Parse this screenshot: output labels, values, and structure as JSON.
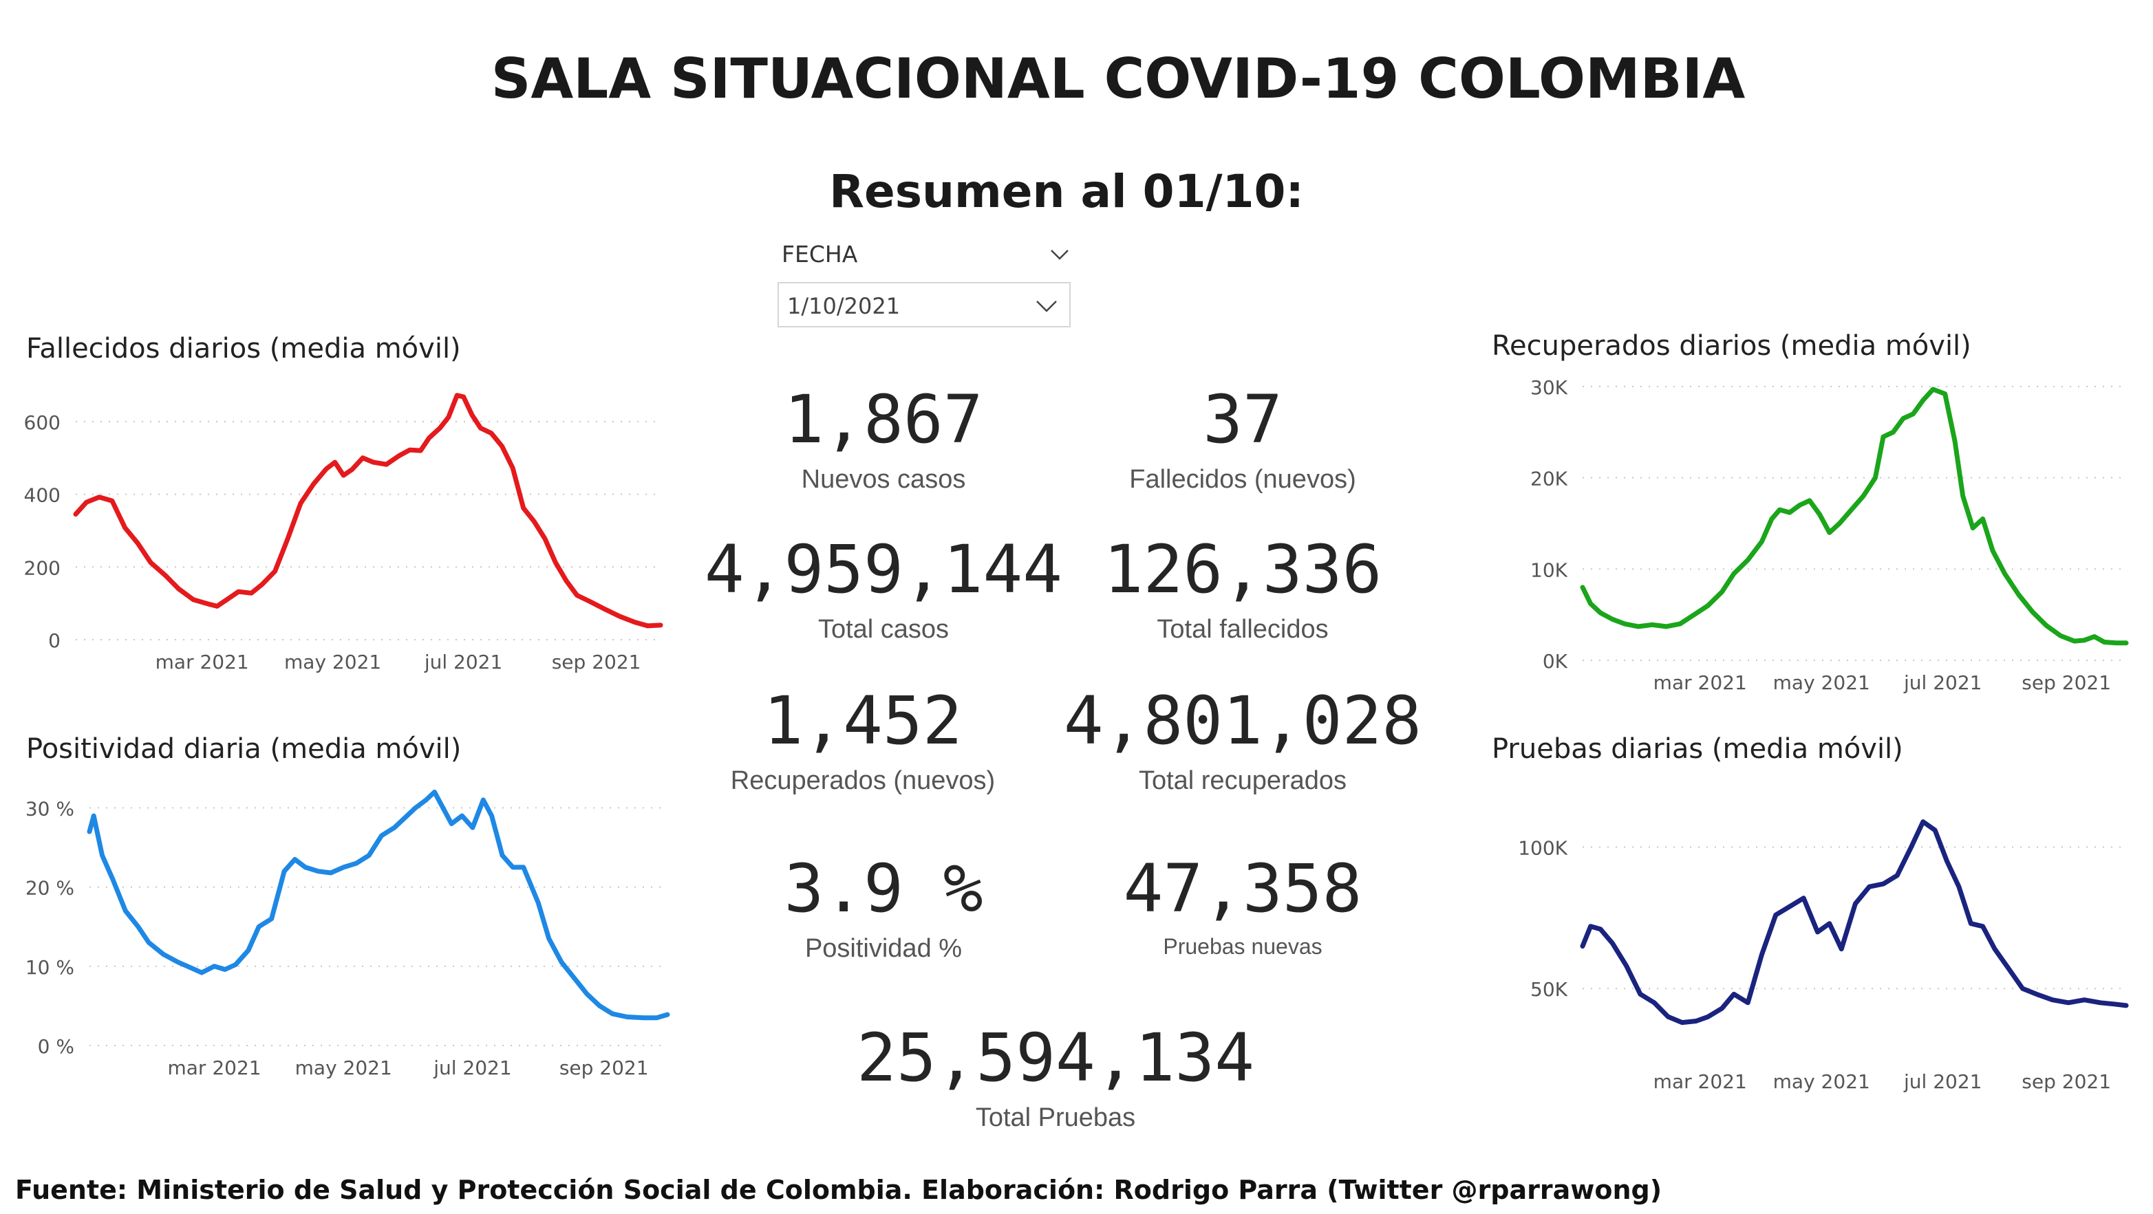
{
  "header": {
    "title": "SALA SITUACIONAL COVID-19 COLOMBIA",
    "subtitle": "Resumen al 01/10:"
  },
  "slicer": {
    "label": "FECHA",
    "value": "1/10/2021"
  },
  "kpis": {
    "nuevos_casos": {
      "value": "1,867",
      "label": "Nuevos casos"
    },
    "fallecidos_nuevos": {
      "value": "37",
      "label": "Fallecidos (nuevos)"
    },
    "total_casos": {
      "value": "4,959,144",
      "label": "Total casos"
    },
    "total_fallecidos": {
      "value": "126,336",
      "label": "Total fallecidos"
    },
    "recuperados_nuevos": {
      "value": "1,452",
      "label": "Recuperados (nuevos)"
    },
    "total_recuperados": {
      "value": "4,801,028",
      "label": "Total recuperados"
    },
    "positividad": {
      "value": "3.9 %",
      "label": "Positividad %"
    },
    "pruebas_nuevas": {
      "value": "47,358",
      "label": "Pruebas nuevas"
    },
    "total_pruebas": {
      "value": "25,594,134",
      "label": "Total Pruebas"
    }
  },
  "footer": "Fuente: Ministerio de Salud y Protección Social de Colombia. Elaboración: Rodrigo Parra (Twitter @rparrawong)",
  "icons": {
    "slicer_header": "chevron-down-icon",
    "slicer_box": "chevron-down-icon"
  },
  "chart_data": [
    {
      "id": "fallecidos",
      "type": "line",
      "title": "Fallecidos diarios (media móvil)",
      "color": "#e41a1c",
      "ylim": [
        0,
        700
      ],
      "yticks": [
        0,
        200,
        400,
        600
      ],
      "ytick_labels": [
        "0",
        "200",
        "400",
        "600"
      ],
      "xlim": [
        "2021-01-01",
        "2021-10-01"
      ],
      "xticks": [
        "2021-03-01",
        "2021-05-01",
        "2021-07-01",
        "2021-09-01"
      ],
      "xtick_labels": [
        "mar 2021",
        "may 2021",
        "jul 2021",
        "sep 2021"
      ],
      "grid": true,
      "series": [
        {
          "points": [
            [
              "2021-01-01",
              345
            ],
            [
              "2021-01-06",
              378
            ],
            [
              "2021-01-12",
              392
            ],
            [
              "2021-01-18",
              382
            ],
            [
              "2021-01-24",
              308
            ],
            [
              "2021-01-30",
              265
            ],
            [
              "2021-02-05",
              212
            ],
            [
              "2021-02-12",
              176
            ],
            [
              "2021-02-18",
              140
            ],
            [
              "2021-02-25",
              110
            ],
            [
              "2021-03-04",
              98
            ],
            [
              "2021-03-08",
              92
            ],
            [
              "2021-03-13",
              112
            ],
            [
              "2021-03-18",
              132
            ],
            [
              "2021-03-24",
              128
            ],
            [
              "2021-03-29",
              152
            ],
            [
              "2021-04-04",
              188
            ],
            [
              "2021-04-10",
              278
            ],
            [
              "2021-04-16",
              375
            ],
            [
              "2021-04-22",
              428
            ],
            [
              "2021-04-28",
              470
            ],
            [
              "2021-05-02",
              488
            ],
            [
              "2021-05-06",
              452
            ],
            [
              "2021-05-10",
              468
            ],
            [
              "2021-05-15",
              500
            ],
            [
              "2021-05-20",
              488
            ],
            [
              "2021-05-26",
              482
            ],
            [
              "2021-06-01",
              506
            ],
            [
              "2021-06-06",
              522
            ],
            [
              "2021-06-11",
              520
            ],
            [
              "2021-06-15",
              555
            ],
            [
              "2021-06-20",
              582
            ],
            [
              "2021-06-24",
              612
            ],
            [
              "2021-06-28",
              672
            ],
            [
              "2021-07-01",
              668
            ],
            [
              "2021-07-05",
              618
            ],
            [
              "2021-07-09",
              582
            ],
            [
              "2021-07-14",
              568
            ],
            [
              "2021-07-19",
              532
            ],
            [
              "2021-07-24",
              472
            ],
            [
              "2021-07-29",
              362
            ],
            [
              "2021-08-03",
              325
            ],
            [
              "2021-08-08",
              278
            ],
            [
              "2021-08-13",
              212
            ],
            [
              "2021-08-18",
              162
            ],
            [
              "2021-08-23",
              122
            ],
            [
              "2021-08-29",
              105
            ],
            [
              "2021-09-05",
              84
            ],
            [
              "2021-09-12",
              64
            ],
            [
              "2021-09-19",
              48
            ],
            [
              "2021-09-25",
              38
            ],
            [
              "2021-10-01",
              40
            ]
          ]
        }
      ]
    },
    {
      "id": "positividad",
      "type": "line",
      "title": "Positividad diaria (media móvil)",
      "color": "#1e88e5",
      "ylim": [
        0,
        33
      ],
      "yticks": [
        0,
        10,
        20,
        30
      ],
      "ytick_labels": [
        "0 %",
        "10 %",
        "20 %",
        "30 %"
      ],
      "xlim": [
        "2021-01-01",
        "2021-10-01"
      ],
      "xticks": [
        "2021-03-01",
        "2021-05-01",
        "2021-07-01",
        "2021-09-01"
      ],
      "xtick_labels": [
        "mar 2021",
        "may 2021",
        "jul 2021",
        "sep 2021"
      ],
      "grid": true,
      "series": [
        {
          "points": [
            [
              "2021-01-01",
              27
            ],
            [
              "2021-01-03",
              29
            ],
            [
              "2021-01-07",
              24
            ],
            [
              "2021-01-12",
              21
            ],
            [
              "2021-01-18",
              17
            ],
            [
              "2021-01-24",
              15
            ],
            [
              "2021-01-29",
              13
            ],
            [
              "2021-02-05",
              11.5
            ],
            [
              "2021-02-12",
              10.5
            ],
            [
              "2021-02-18",
              9.8
            ],
            [
              "2021-02-23",
              9.2
            ],
            [
              "2021-03-01",
              10
            ],
            [
              "2021-03-06",
              9.6
            ],
            [
              "2021-03-11",
              10.2
            ],
            [
              "2021-03-17",
              12
            ],
            [
              "2021-03-22",
              15
            ],
            [
              "2021-03-28",
              16
            ],
            [
              "2021-04-03",
              22
            ],
            [
              "2021-04-08",
              23.5
            ],
            [
              "2021-04-13",
              22.5
            ],
            [
              "2021-04-19",
              22
            ],
            [
              "2021-04-25",
              21.8
            ],
            [
              "2021-05-01",
              22.5
            ],
            [
              "2021-05-07",
              23
            ],
            [
              "2021-05-13",
              24
            ],
            [
              "2021-05-19",
              26.5
            ],
            [
              "2021-05-25",
              27.5
            ],
            [
              "2021-05-31",
              29
            ],
            [
              "2021-06-04",
              30
            ],
            [
              "2021-06-09",
              31
            ],
            [
              "2021-06-13",
              32
            ],
            [
              "2021-06-17",
              30
            ],
            [
              "2021-06-21",
              28
            ],
            [
              "2021-06-26",
              29
            ],
            [
              "2021-07-01",
              27.5
            ],
            [
              "2021-07-06",
              31
            ],
            [
              "2021-07-10",
              29
            ],
            [
              "2021-07-15",
              24
            ],
            [
              "2021-07-20",
              22.5
            ],
            [
              "2021-07-25",
              22.5
            ],
            [
              "2021-08-01",
              18
            ],
            [
              "2021-08-06",
              13.5
            ],
            [
              "2021-08-12",
              10.5
            ],
            [
              "2021-08-18",
              8.5
            ],
            [
              "2021-08-24",
              6.5
            ],
            [
              "2021-08-30",
              5
            ],
            [
              "2021-09-05",
              4
            ],
            [
              "2021-09-12",
              3.6
            ],
            [
              "2021-09-20",
              3.5
            ],
            [
              "2021-09-26",
              3.5
            ],
            [
              "2021-10-01",
              3.9
            ]
          ]
        }
      ]
    },
    {
      "id": "recuperados",
      "type": "line",
      "title": "Recuperados diarios (media móvil)",
      "color": "#1aa51a",
      "ylim": [
        0,
        30000
      ],
      "yticks": [
        0,
        10000,
        20000,
        30000
      ],
      "ytick_labels": [
        "0K",
        "10K",
        "20K",
        "30K"
      ],
      "xlim": [
        "2021-01-01",
        "2021-10-01"
      ],
      "xticks": [
        "2021-03-01",
        "2021-05-01",
        "2021-07-01",
        "2021-09-01"
      ],
      "xtick_labels": [
        "mar 2021",
        "may 2021",
        "jul 2021",
        "sep 2021"
      ],
      "grid": true,
      "series": [
        {
          "points": [
            [
              "2021-01-01",
              8000
            ],
            [
              "2021-01-05",
              6200
            ],
            [
              "2021-01-10",
              5200
            ],
            [
              "2021-01-16",
              4500
            ],
            [
              "2021-01-22",
              4000
            ],
            [
              "2021-01-29",
              3700
            ],
            [
              "2021-02-05",
              3900
            ],
            [
              "2021-02-12",
              3700
            ],
            [
              "2021-02-19",
              4000
            ],
            [
              "2021-02-26",
              5000
            ],
            [
              "2021-03-05",
              6000
            ],
            [
              "2021-03-12",
              7500
            ],
            [
              "2021-03-18",
              9500
            ],
            [
              "2021-03-25",
              11000
            ],
            [
              "2021-04-01",
              13000
            ],
            [
              "2021-04-06",
              15500
            ],
            [
              "2021-04-10",
              16500
            ],
            [
              "2021-04-15",
              16200
            ],
            [
              "2021-04-20",
              17000
            ],
            [
              "2021-04-25",
              17500
            ],
            [
              "2021-04-30",
              16000
            ],
            [
              "2021-05-05",
              14000
            ],
            [
              "2021-05-10",
              15000
            ],
            [
              "2021-05-16",
              16500
            ],
            [
              "2021-05-22",
              18000
            ],
            [
              "2021-05-28",
              20000
            ],
            [
              "2021-06-01",
              24500
            ],
            [
              "2021-06-06",
              25000
            ],
            [
              "2021-06-11",
              26500
            ],
            [
              "2021-06-16",
              27000
            ],
            [
              "2021-06-21",
              28500
            ],
            [
              "2021-06-26",
              29700
            ],
            [
              "2021-07-02",
              29200
            ],
            [
              "2021-07-07",
              24000
            ],
            [
              "2021-07-11",
              18000
            ],
            [
              "2021-07-16",
              14500
            ],
            [
              "2021-07-21",
              15500
            ],
            [
              "2021-07-26",
              12000
            ],
            [
              "2021-08-01",
              9500
            ],
            [
              "2021-08-08",
              7200
            ],
            [
              "2021-08-15",
              5300
            ],
            [
              "2021-08-22",
              3800
            ],
            [
              "2021-08-29",
              2700
            ],
            [
              "2021-09-05",
              2100
            ],
            [
              "2021-09-10",
              2200
            ],
            [
              "2021-09-15",
              2600
            ],
            [
              "2021-09-20",
              2000
            ],
            [
              "2021-09-26",
              1900
            ],
            [
              "2021-10-01",
              1900
            ]
          ]
        }
      ]
    },
    {
      "id": "pruebas",
      "type": "line",
      "title": "Pruebas diarias (media móvil)",
      "color": "#1a237e",
      "ylim": [
        25000,
        115000
      ],
      "yticks": [
        50000,
        100000
      ],
      "ytick_labels": [
        "50K",
        "100K"
      ],
      "xlim": [
        "2021-01-01",
        "2021-10-01"
      ],
      "xticks": [
        "2021-03-01",
        "2021-05-01",
        "2021-07-01",
        "2021-09-01"
      ],
      "xtick_labels": [
        "mar 2021",
        "may 2021",
        "jul 2021",
        "sep 2021"
      ],
      "grid": true,
      "series": [
        {
          "points": [
            [
              "2021-01-01",
              65000
            ],
            [
              "2021-01-05",
              72000
            ],
            [
              "2021-01-10",
              71000
            ],
            [
              "2021-01-16",
              66000
            ],
            [
              "2021-01-23",
              58000
            ],
            [
              "2021-01-30",
              48000
            ],
            [
              "2021-02-06",
              45000
            ],
            [
              "2021-02-13",
              40000
            ],
            [
              "2021-02-20",
              38000
            ],
            [
              "2021-02-27",
              38500
            ],
            [
              "2021-03-05",
              40000
            ],
            [
              "2021-03-12",
              43000
            ],
            [
              "2021-03-18",
              48000
            ],
            [
              "2021-03-25",
              45000
            ],
            [
              "2021-04-01",
              62000
            ],
            [
              "2021-04-08",
              76000
            ],
            [
              "2021-04-15",
              79000
            ],
            [
              "2021-04-22",
              82000
            ],
            [
              "2021-04-29",
              70000
            ],
            [
              "2021-05-05",
              73000
            ],
            [
              "2021-05-11",
              64000
            ],
            [
              "2021-05-18",
              80000
            ],
            [
              "2021-05-25",
              86000
            ],
            [
              "2021-06-01",
              87000
            ],
            [
              "2021-06-08",
              90000
            ],
            [
              "2021-06-15",
              100000
            ],
            [
              "2021-06-21",
              109000
            ],
            [
              "2021-06-27",
              106000
            ],
            [
              "2021-07-03",
              95000
            ],
            [
              "2021-07-09",
              86000
            ],
            [
              "2021-07-15",
              73000
            ],
            [
              "2021-07-21",
              72000
            ],
            [
              "2021-07-27",
              64000
            ],
            [
              "2021-08-03",
              57000
            ],
            [
              "2021-08-10",
              50000
            ],
            [
              "2021-08-17",
              48000
            ],
            [
              "2021-08-25",
              46000
            ],
            [
              "2021-09-02",
              45000
            ],
            [
              "2021-09-10",
              46000
            ],
            [
              "2021-09-18",
              45000
            ],
            [
              "2021-09-25",
              44500
            ],
            [
              "2021-10-01",
              44000
            ]
          ]
        }
      ]
    }
  ]
}
